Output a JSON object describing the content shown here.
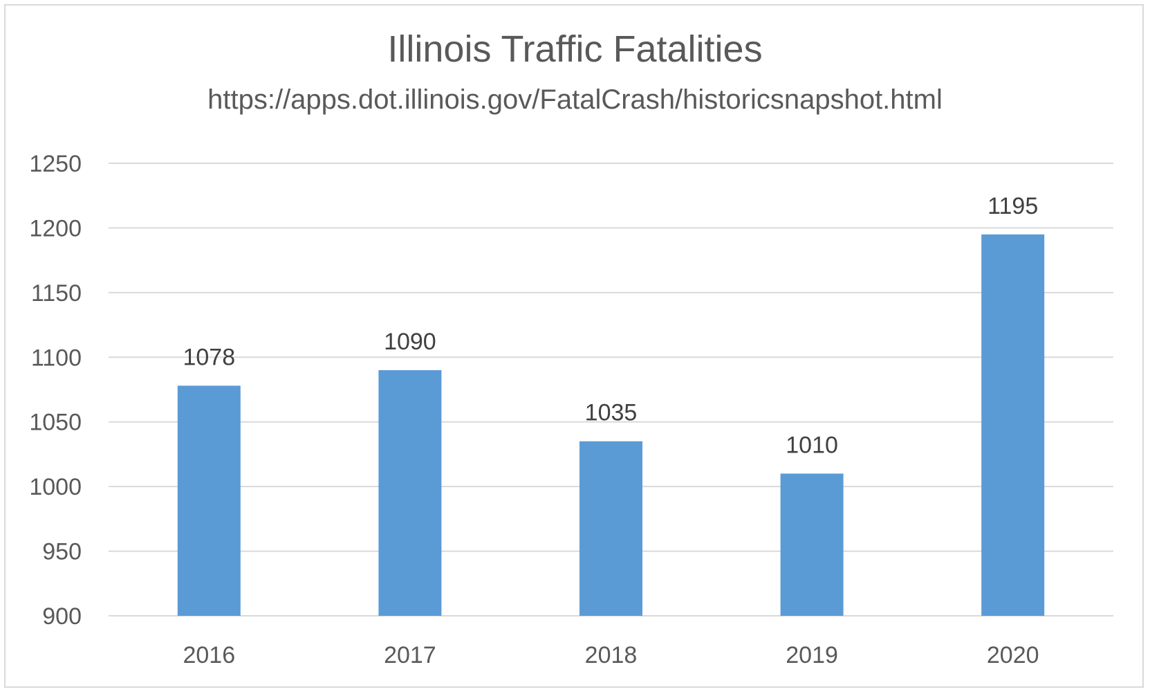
{
  "chart_data": {
    "type": "bar",
    "title": "Illinois Traffic Fatalities",
    "subtitle": "https://apps.dot.illinois.gov/FatalCrash/historicsnapshot.html",
    "xlabel": "",
    "ylabel": "",
    "categories": [
      "2016",
      "2017",
      "2018",
      "2019",
      "2020"
    ],
    "values": [
      1078,
      1090,
      1035,
      1010,
      1195
    ],
    "data_labels": [
      "1078",
      "1090",
      "1035",
      "1010",
      "1195"
    ],
    "ylim": [
      900,
      1250
    ],
    "yticks": [
      900,
      950,
      1000,
      1050,
      1100,
      1150,
      1200,
      1250
    ],
    "grid": true,
    "legend": "none",
    "bar_color": "#5b9bd5",
    "gridline_color": "#d9d9d9",
    "text_color": "#595959"
  }
}
